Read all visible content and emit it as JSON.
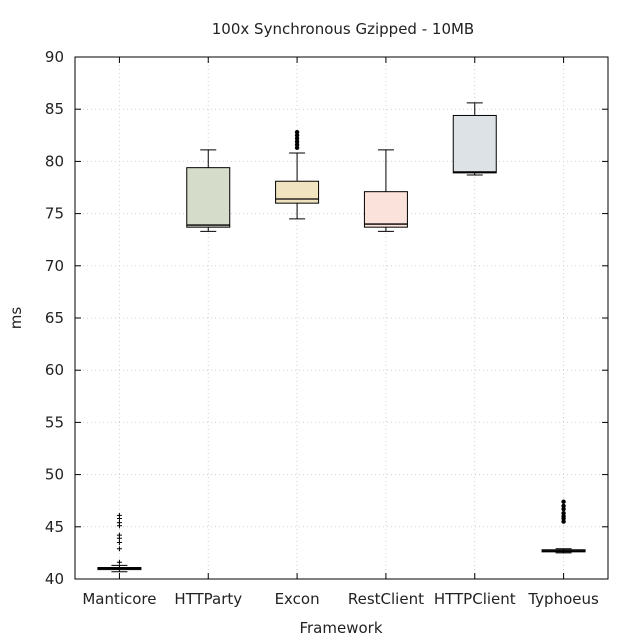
{
  "chart_data": {
    "type": "box",
    "title": "100x Synchronous Gzipped - 10MB",
    "xlabel": "Framework",
    "ylabel": "ms",
    "ylim": [
      40,
      90
    ],
    "yticks": [
      40,
      45,
      50,
      55,
      60,
      65,
      70,
      75,
      80,
      85,
      90
    ],
    "grid": true,
    "categories": [
      "Manticore",
      "HTTParty",
      "Excon",
      "RestClient",
      "HTTPClient",
      "Typhoeus"
    ],
    "boxes": [
      {
        "name": "Manticore",
        "whisker_low": 40.7,
        "q1": 40.9,
        "median": 41.0,
        "q3": 41.1,
        "whisker_high": 41.3,
        "outliers": [
          41.6,
          42.9,
          43.5,
          43.9,
          44.2,
          45.1,
          45.4,
          45.8,
          46.1
        ],
        "outlier_marker": "plus",
        "color": "#ffffff"
      },
      {
        "name": "HTTParty",
        "whisker_low": 73.3,
        "q1": 73.7,
        "median": 73.9,
        "q3": 79.4,
        "whisker_high": 81.1,
        "outliers": [],
        "outlier_marker": "plus",
        "color": "#d5dcca"
      },
      {
        "name": "Excon",
        "whisker_low": 74.5,
        "q1": 76.0,
        "median": 76.4,
        "q3": 78.1,
        "whisker_high": 80.8,
        "outliers": [
          81.3,
          81.6,
          81.9,
          82.2,
          82.5,
          82.8
        ],
        "outlier_marker": "dot",
        "color": "#efe3c0"
      },
      {
        "name": "RestClient",
        "whisker_low": 73.3,
        "q1": 73.7,
        "median": 74.0,
        "q3": 77.1,
        "whisker_high": 81.1,
        "outliers": [],
        "outlier_marker": "plus",
        "color": "#fbe3dc"
      },
      {
        "name": "HTTPClient",
        "whisker_low": 78.7,
        "q1": 78.9,
        "median": 79.0,
        "q3": 84.4,
        "whisker_high": 85.6,
        "outliers": [],
        "outlier_marker": "plus",
        "color": "#dde2e6"
      },
      {
        "name": "Typhoeus",
        "whisker_low": 42.5,
        "q1": 42.6,
        "median": 42.7,
        "q3": 42.8,
        "whisker_high": 42.9,
        "outliers": [
          45.5,
          45.8,
          46.0,
          46.3,
          46.7,
          47.0,
          47.4
        ],
        "outlier_marker": "dot",
        "color": "#f1f1f1"
      }
    ]
  }
}
